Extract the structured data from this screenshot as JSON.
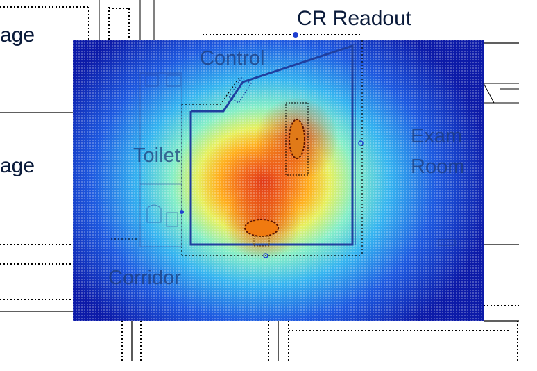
{
  "labels": {
    "storage_upper": "age",
    "storage_lower": "age",
    "cr_readout": "CR Readout",
    "control": "Control",
    "toilet": "Toilet",
    "exam": "Exam",
    "room": "Room",
    "corridor": "Corridor"
  },
  "heatmap": {
    "colormap": [
      "#0c1aa8",
      "#1e5ae0",
      "#36b4f0",
      "#86eec8",
      "#e6f060",
      "#ffb020",
      "#e03818"
    ],
    "hotspots": [
      "tube-head",
      "table-bucky"
    ]
  },
  "colors": {
    "background": "#ffffff",
    "wall_line": "#000000",
    "barrier_line": "#1f3f9f",
    "marker": "#1f3fd0",
    "label_dark": "#0a1a3a",
    "label_overlay": "#1c3a78"
  }
}
